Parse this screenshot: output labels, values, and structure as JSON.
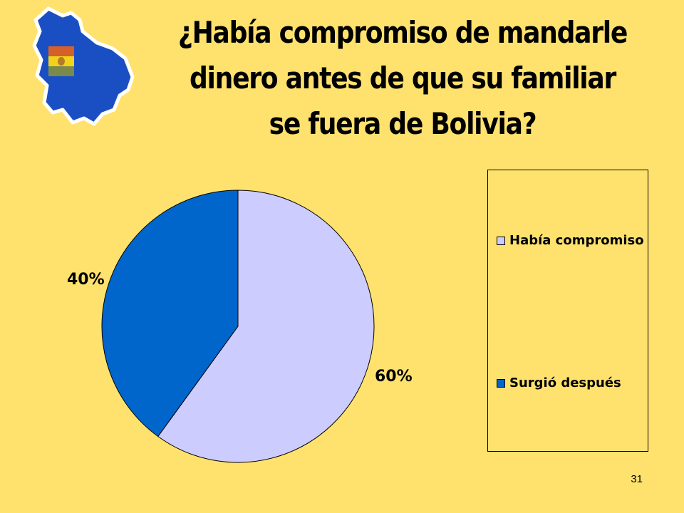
{
  "slide": {
    "title": "¿Había compromiso de mandarle dinero antes de que su familiar se fuera de Bolivia?",
    "page_number": "31",
    "background_color": "#FFE26E",
    "logo_icon": "bolivia-map-flag-icon"
  },
  "chart_data": {
    "type": "pie",
    "title": "",
    "slices": [
      {
        "label": "Había compromiso",
        "value": 60,
        "data_label": "60%",
        "color": "#CCCCFF"
      },
      {
        "label": "Surgió después",
        "value": 40,
        "data_label": "40%",
        "color": "#0066CC"
      }
    ],
    "legend": {
      "placement": "right",
      "entries": [
        "Había compromiso",
        "Surgió después"
      ]
    }
  }
}
